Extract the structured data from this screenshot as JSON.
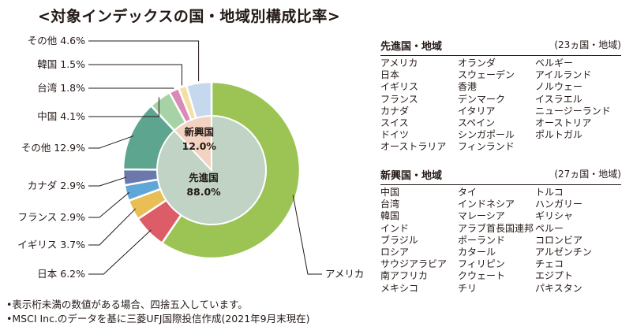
{
  "title": "<対象インデックスの国・地域別構成比率>",
  "chart_data": {
    "type": "pie",
    "title": "<対象インデックスの国・地域別構成比率>",
    "slices": [
      {
        "label": "アメリカ",
        "value": 59.6,
        "color": "#9bc454"
      },
      {
        "label": "日本",
        "value": 6.2,
        "color": "#dc5d67"
      },
      {
        "label": "イギリス",
        "value": 3.7,
        "color": "#e8be55"
      },
      {
        "label": "フランス",
        "value": 2.9,
        "color": "#5ea7d6"
      },
      {
        "label": "カナダ",
        "value": 2.9,
        "color": "#6a78ac"
      },
      {
        "label": "その他",
        "value": 12.9,
        "color": "#5ea58f"
      },
      {
        "label": "中国",
        "value": 4.1,
        "color": "#a6d3a6"
      },
      {
        "label": "台湾",
        "value": 1.8,
        "color": "#d98bb5"
      },
      {
        "label": "韓国",
        "value": 1.5,
        "color": "#f6dfa2"
      },
      {
        "label": "その他",
        "value": 4.6,
        "color": "#c5d8ee"
      }
    ],
    "slice_labels": [
      "アメリカ 59.6%",
      "日本 6.2%",
      "イギリス 3.7%",
      "フランス 2.9%",
      "カナダ 2.9%",
      "その他 12.9%",
      "中国 4.1%",
      "台湾 1.8%",
      "韓国 1.5%",
      "その他 4.6%"
    ],
    "inner": [
      {
        "label": "先進国",
        "value_label": "88.0%",
        "value": 88.0,
        "color": "#c0d3c4"
      },
      {
        "label": "新興国",
        "value_label": "12.0%",
        "value": 12.0,
        "color": "#f2d3c2"
      }
    ]
  },
  "developed": {
    "heading": "先進国・地域",
    "count": "(23ヵ国・地域)",
    "columns": [
      [
        "アメリカ",
        "日本",
        "イギリス",
        "フランス",
        "カナダ",
        "スイス",
        "ドイツ",
        "オーストラリア"
      ],
      [
        "オランダ",
        "スウェーデン",
        "香港",
        "デンマーク",
        "イタリア",
        "スペイン",
        "シンガポール",
        "フィンランド"
      ],
      [
        "ベルギー",
        "アイルランド",
        "ノルウェー",
        "イスラエル",
        "ニュージーランド",
        "オーストリア",
        "ポルトガル"
      ]
    ]
  },
  "emerging": {
    "heading": "新興国・地域",
    "count": "(27ヵ国・地域)",
    "columns": [
      [
        "中国",
        "台湾",
        "韓国",
        "インド",
        "ブラジル",
        "ロシア",
        "サウジアラビア",
        "南アフリカ",
        "メキシコ"
      ],
      [
        "タイ",
        "インドネシア",
        "マレーシア",
        "アラブ首長国連邦",
        "ポーランド",
        "カタール",
        "フィリピン",
        "クウェート",
        "チリ"
      ],
      [
        "トルコ",
        "ハンガリー",
        "ギリシャ",
        "ペルー",
        "コロンビア",
        "アルゼンチン",
        "チェコ",
        "エジプト",
        "パキスタン"
      ]
    ]
  },
  "notes": [
    "•表示桁未満の数値がある場合、四捨五入しています。",
    "•MSCI Inc.のデータを基に三菱UFJ国際投信作成(2021年9月末現在)"
  ]
}
